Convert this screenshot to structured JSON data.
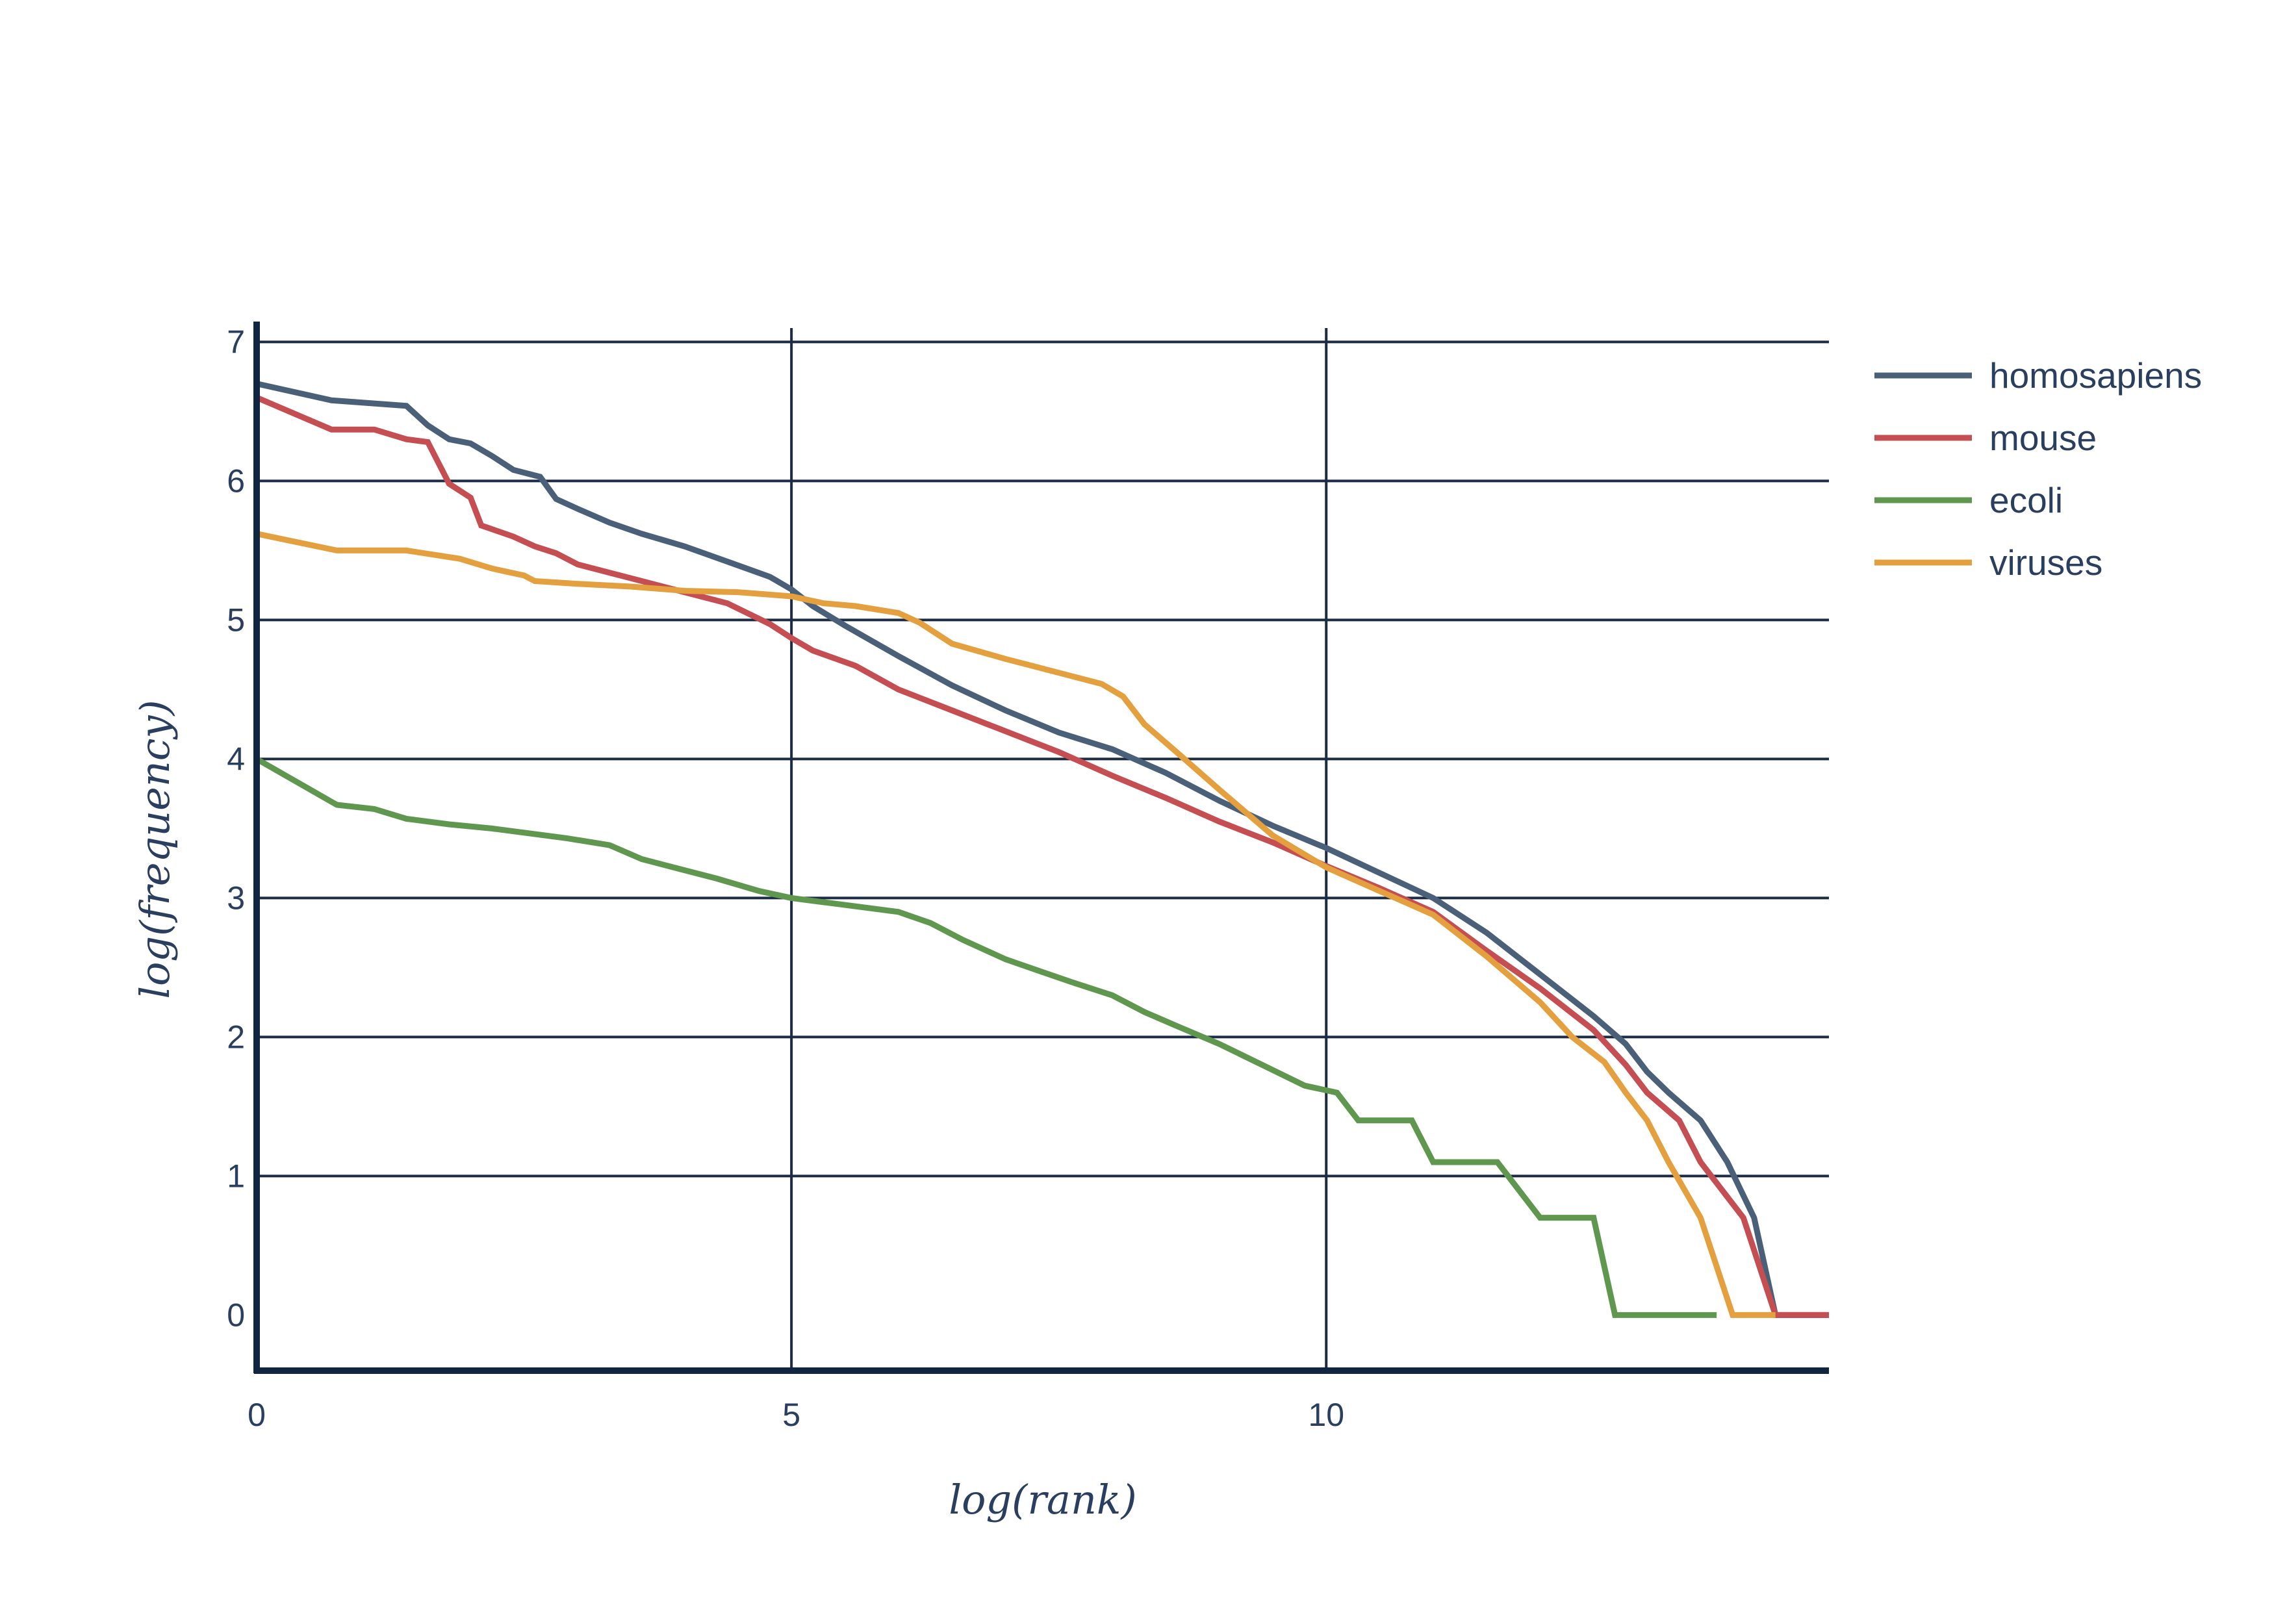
{
  "chart_data": {
    "type": "line",
    "title": "",
    "xlabel": "log(rank)",
    "ylabel": "log(frequency)",
    "xlim": [
      0,
      14.7
    ],
    "ylim": [
      -0.4,
      7.1
    ],
    "x_ticks": [
      0,
      5,
      10
    ],
    "y_ticks": [
      0,
      1,
      2,
      3,
      4,
      5,
      6,
      7
    ],
    "grid": true,
    "legend_position": "right",
    "series": [
      {
        "name": "homosapiens",
        "color": "#4a6079",
        "points": [
          [
            0,
            6.7
          ],
          [
            0.7,
            6.58
          ],
          [
            1.4,
            6.54
          ],
          [
            1.6,
            6.4
          ],
          [
            1.8,
            6.3
          ],
          [
            2.0,
            6.27
          ],
          [
            2.2,
            6.18
          ],
          [
            2.4,
            6.08
          ],
          [
            2.65,
            6.03
          ],
          [
            2.8,
            5.87
          ],
          [
            3.0,
            5.8
          ],
          [
            3.3,
            5.7
          ],
          [
            3.6,
            5.62
          ],
          [
            4.0,
            5.53
          ],
          [
            4.4,
            5.42
          ],
          [
            4.8,
            5.31
          ],
          [
            5.0,
            5.22
          ],
          [
            5.2,
            5.1
          ],
          [
            5.5,
            4.96
          ],
          [
            6.0,
            4.74
          ],
          [
            6.5,
            4.53
          ],
          [
            7.0,
            4.35
          ],
          [
            7.5,
            4.19
          ],
          [
            8.0,
            4.07
          ],
          [
            8.5,
            3.9
          ],
          [
            9.0,
            3.7
          ],
          [
            9.5,
            3.52
          ],
          [
            10.0,
            3.36
          ],
          [
            10.5,
            3.18
          ],
          [
            11.0,
            3.0
          ],
          [
            11.5,
            2.75
          ],
          [
            12.0,
            2.45
          ],
          [
            12.5,
            2.15
          ],
          [
            12.8,
            1.95
          ],
          [
            13.0,
            1.75
          ],
          [
            13.2,
            1.6
          ],
          [
            13.5,
            1.4
          ],
          [
            13.75,
            1.1
          ],
          [
            14.0,
            0.7
          ],
          [
            14.2,
            0.0
          ],
          [
            14.7,
            0.0
          ]
        ]
      },
      {
        "name": "mouse",
        "color": "#c44e52",
        "points": [
          [
            0,
            6.6
          ],
          [
            0.7,
            6.37
          ],
          [
            1.1,
            6.37
          ],
          [
            1.4,
            6.3
          ],
          [
            1.6,
            6.28
          ],
          [
            1.8,
            5.98
          ],
          [
            2.0,
            5.88
          ],
          [
            2.1,
            5.68
          ],
          [
            2.4,
            5.6
          ],
          [
            2.6,
            5.53
          ],
          [
            2.8,
            5.48
          ],
          [
            3.0,
            5.4
          ],
          [
            3.5,
            5.3
          ],
          [
            4.0,
            5.2
          ],
          [
            4.4,
            5.12
          ],
          [
            4.8,
            4.97
          ],
          [
            5.0,
            4.87
          ],
          [
            5.2,
            4.78
          ],
          [
            5.6,
            4.67
          ],
          [
            6.0,
            4.5
          ],
          [
            6.5,
            4.35
          ],
          [
            7.0,
            4.2
          ],
          [
            7.5,
            4.05
          ],
          [
            8.0,
            3.88
          ],
          [
            8.5,
            3.72
          ],
          [
            9.0,
            3.55
          ],
          [
            9.5,
            3.4
          ],
          [
            10.0,
            3.23
          ],
          [
            10.5,
            3.07
          ],
          [
            11.0,
            2.9
          ],
          [
            11.5,
            2.62
          ],
          [
            12.0,
            2.35
          ],
          [
            12.5,
            2.05
          ],
          [
            12.8,
            1.8
          ],
          [
            13.0,
            1.6
          ],
          [
            13.3,
            1.4
          ],
          [
            13.5,
            1.1
          ],
          [
            13.9,
            0.7
          ],
          [
            14.2,
            0.0
          ],
          [
            14.7,
            0.0
          ]
        ]
      },
      {
        "name": "ecoli",
        "color": "#5f974f",
        "points": [
          [
            0,
            4.0
          ],
          [
            0.75,
            3.67
          ],
          [
            1.1,
            3.64
          ],
          [
            1.4,
            3.57
          ],
          [
            1.8,
            3.53
          ],
          [
            2.2,
            3.5
          ],
          [
            2.5,
            3.47
          ],
          [
            2.9,
            3.43
          ],
          [
            3.3,
            3.38
          ],
          [
            3.6,
            3.28
          ],
          [
            4.0,
            3.2
          ],
          [
            4.3,
            3.14
          ],
          [
            4.7,
            3.05
          ],
          [
            5.0,
            3.0
          ],
          [
            5.5,
            2.95
          ],
          [
            6.0,
            2.9
          ],
          [
            6.3,
            2.82
          ],
          [
            6.6,
            2.7
          ],
          [
            7.0,
            2.56
          ],
          [
            7.3,
            2.48
          ],
          [
            7.6,
            2.4
          ],
          [
            8.0,
            2.3
          ],
          [
            8.3,
            2.18
          ],
          [
            8.6,
            2.08
          ],
          [
            9.0,
            1.95
          ],
          [
            9.4,
            1.8
          ],
          [
            9.8,
            1.65
          ],
          [
            10.1,
            1.6
          ],
          [
            10.3,
            1.4
          ],
          [
            10.8,
            1.4
          ],
          [
            11.0,
            1.1
          ],
          [
            11.6,
            1.1
          ],
          [
            12.0,
            0.7
          ],
          [
            12.5,
            0.7
          ],
          [
            12.7,
            0.0
          ],
          [
            13.65,
            0.0
          ]
        ]
      },
      {
        "name": "viruses",
        "color": "#e4a03e",
        "points": [
          [
            0,
            5.62
          ],
          [
            0.75,
            5.5
          ],
          [
            1.4,
            5.5
          ],
          [
            1.9,
            5.44
          ],
          [
            2.2,
            5.37
          ],
          [
            2.5,
            5.32
          ],
          [
            2.6,
            5.28
          ],
          [
            3.0,
            5.26
          ],
          [
            3.5,
            5.24
          ],
          [
            4.0,
            5.21
          ],
          [
            4.5,
            5.2
          ],
          [
            5.0,
            5.17
          ],
          [
            5.3,
            5.12
          ],
          [
            5.6,
            5.1
          ],
          [
            6.0,
            5.05
          ],
          [
            6.2,
            4.98
          ],
          [
            6.5,
            4.83
          ],
          [
            7.0,
            4.72
          ],
          [
            7.5,
            4.62
          ],
          [
            7.9,
            4.54
          ],
          [
            8.1,
            4.45
          ],
          [
            8.3,
            4.25
          ],
          [
            8.6,
            4.05
          ],
          [
            9.0,
            3.78
          ],
          [
            9.5,
            3.45
          ],
          [
            10.0,
            3.22
          ],
          [
            10.5,
            3.05
          ],
          [
            11.0,
            2.88
          ],
          [
            11.5,
            2.58
          ],
          [
            12.0,
            2.25
          ],
          [
            12.3,
            2.0
          ],
          [
            12.6,
            1.82
          ],
          [
            12.8,
            1.6
          ],
          [
            13.0,
            1.4
          ],
          [
            13.2,
            1.1
          ],
          [
            13.5,
            0.7
          ],
          [
            13.8,
            0.0
          ],
          [
            14.2,
            0.0
          ]
        ]
      }
    ]
  }
}
